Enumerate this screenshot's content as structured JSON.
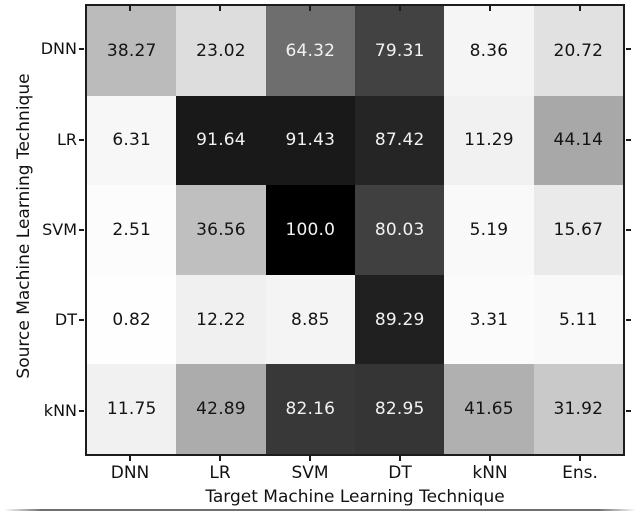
{
  "chart_data": {
    "type": "heatmap",
    "title": "",
    "xlabel": "Target Machine Learning Technique",
    "ylabel": "Source Machine Learning Technique",
    "x_categories": [
      "DNN",
      "LR",
      "SVM",
      "DT",
      "kNN",
      "Ens."
    ],
    "y_categories": [
      "DNN",
      "LR",
      "SVM",
      "DT",
      "kNN"
    ],
    "values": [
      [
        38.27,
        23.02,
        64.32,
        79.31,
        8.36,
        20.72
      ],
      [
        6.31,
        91.64,
        91.43,
        87.42,
        11.29,
        44.14
      ],
      [
        2.51,
        36.56,
        100.0,
        80.03,
        5.19,
        15.67
      ],
      [
        0.82,
        12.22,
        8.85,
        89.29,
        3.31,
        5.11
      ],
      [
        11.75,
        42.89,
        82.16,
        82.95,
        41.65,
        31.92
      ]
    ],
    "value_labels": [
      [
        "38.27",
        "23.02",
        "64.32",
        "79.31",
        "8.36",
        "20.72"
      ],
      [
        "6.31",
        "91.64",
        "91.43",
        "87.42",
        "11.29",
        "44.14"
      ],
      [
        "2.51",
        "36.56",
        "100.0",
        "80.03",
        "5.19",
        "15.67"
      ],
      [
        "0.82",
        "12.22",
        "8.85",
        "89.29",
        "3.31",
        "5.11"
      ],
      [
        "11.75",
        "42.89",
        "82.16",
        "82.95",
        "41.65",
        "31.92"
      ]
    ],
    "colormap": {
      "name": "Greys",
      "value_range": [
        0,
        100
      ],
      "anchor_values": [
        0,
        12.5,
        25,
        37.5,
        50,
        62.5,
        75,
        87.5,
        100
      ],
      "anchor_grays": [
        255,
        240,
        217,
        189,
        150,
        115,
        82,
        37,
        0
      ]
    },
    "cell_text_colors": {
      "on_light": "#141414",
      "on_dark": "#f2f2f2",
      "white_text_threshold": 50
    },
    "grid": false,
    "legend": null
  },
  "figure": {
    "background": "#ffffff",
    "axis_color": "#1c1c1c"
  }
}
